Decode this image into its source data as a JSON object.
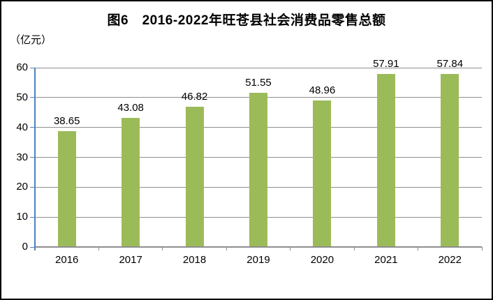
{
  "chart_data": {
    "type": "bar",
    "title": "图6　2016-2022年旺苍县社会消费品零售总额",
    "ylabel": "（亿元）",
    "xlabel": "",
    "categories": [
      "2016",
      "2017",
      "2018",
      "2019",
      "2020",
      "2021",
      "2022"
    ],
    "values": [
      38.65,
      43.08,
      46.82,
      51.55,
      48.96,
      57.91,
      57.84
    ],
    "value_labels": [
      "38.65",
      "43.08",
      "46.82",
      "51.55",
      "48.96",
      "57.91",
      "57.84"
    ],
    "ylim": [
      0,
      60
    ],
    "yticks": [
      0,
      10,
      20,
      30,
      40,
      50,
      60
    ],
    "grid": true,
    "legend_position": "none",
    "colors": {
      "bar": "#9bbb59",
      "gridline": "#8e8e8e",
      "x_axis": "#8e8e8e",
      "y_axis": "#4f81bd",
      "text": "#000000",
      "frame_border": "#000000",
      "background": "#ffffff"
    }
  }
}
